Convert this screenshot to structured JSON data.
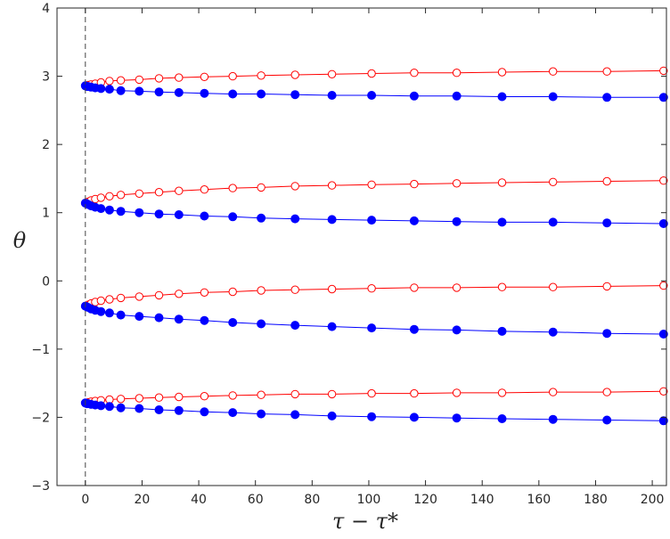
{
  "chart_data": {
    "type": "line",
    "xlabel": "τ − τ*",
    "ylabel": "θ",
    "xlim": [
      -10,
      205
    ],
    "ylim": [
      -3,
      4
    ],
    "x_ticks": [
      0,
      20,
      40,
      60,
      80,
      100,
      120,
      140,
      160,
      180,
      200
    ],
    "y_ticks": [
      -3,
      -2,
      -1,
      0,
      1,
      2,
      3,
      4
    ],
    "grid": false,
    "legend": "none",
    "reference_line": {
      "x": 0,
      "style": "dashed",
      "color": "#444444"
    },
    "x": [
      0,
      0.5,
      1,
      2,
      3.5,
      5.5,
      8.5,
      12.5,
      19,
      26,
      33,
      42,
      52,
      62,
      74,
      87,
      101,
      116,
      131,
      147,
      165,
      184,
      204
    ],
    "series": [
      {
        "color": "#ff0000",
        "marker": "open-circle",
        "values": [
          2.86,
          2.86,
          2.87,
          2.88,
          2.89,
          2.91,
          2.93,
          2.94,
          2.95,
          2.97,
          2.98,
          2.99,
          3.0,
          3.01,
          3.02,
          3.03,
          3.04,
          3.05,
          3.05,
          3.06,
          3.07,
          3.07,
          3.08
        ]
      },
      {
        "color": "#0000ff",
        "marker": "filled-circle",
        "values": [
          2.86,
          2.85,
          2.85,
          2.84,
          2.83,
          2.82,
          2.81,
          2.79,
          2.78,
          2.77,
          2.76,
          2.75,
          2.74,
          2.74,
          2.73,
          2.72,
          2.72,
          2.71,
          2.71,
          2.7,
          2.7,
          2.69,
          2.69
        ]
      },
      {
        "color": "#ff0000",
        "marker": "open-circle",
        "values": [
          1.14,
          1.15,
          1.16,
          1.18,
          1.2,
          1.22,
          1.24,
          1.26,
          1.28,
          1.3,
          1.32,
          1.34,
          1.36,
          1.37,
          1.39,
          1.4,
          1.41,
          1.42,
          1.43,
          1.44,
          1.45,
          1.46,
          1.47
        ]
      },
      {
        "color": "#0000ff",
        "marker": "filled-circle",
        "values": [
          1.14,
          1.13,
          1.12,
          1.1,
          1.08,
          1.06,
          1.04,
          1.02,
          1.0,
          0.98,
          0.97,
          0.95,
          0.94,
          0.92,
          0.91,
          0.9,
          0.89,
          0.88,
          0.87,
          0.86,
          0.86,
          0.85,
          0.84
        ]
      },
      {
        "color": "#ff0000",
        "marker": "open-circle",
        "values": [
          -0.37,
          -0.36,
          -0.35,
          -0.33,
          -0.31,
          -0.29,
          -0.27,
          -0.25,
          -0.23,
          -0.21,
          -0.19,
          -0.17,
          -0.16,
          -0.14,
          -0.13,
          -0.12,
          -0.11,
          -0.1,
          -0.1,
          -0.09,
          -0.09,
          -0.08,
          -0.07
        ]
      },
      {
        "color": "#0000ff",
        "marker": "filled-circle",
        "values": [
          -0.37,
          -0.38,
          -0.39,
          -0.41,
          -0.43,
          -0.45,
          -0.47,
          -0.5,
          -0.52,
          -0.54,
          -0.56,
          -0.58,
          -0.61,
          -0.63,
          -0.65,
          -0.67,
          -0.69,
          -0.71,
          -0.72,
          -0.74,
          -0.75,
          -0.77,
          -0.78
        ]
      },
      {
        "color": "#ff0000",
        "marker": "open-circle",
        "values": [
          -1.79,
          -1.79,
          -1.78,
          -1.77,
          -1.76,
          -1.75,
          -1.74,
          -1.73,
          -1.72,
          -1.71,
          -1.7,
          -1.69,
          -1.68,
          -1.67,
          -1.66,
          -1.66,
          -1.65,
          -1.65,
          -1.64,
          -1.64,
          -1.63,
          -1.63,
          -1.62
        ]
      },
      {
        "color": "#0000ff",
        "marker": "filled-circle",
        "values": [
          -1.79,
          -1.8,
          -1.8,
          -1.81,
          -1.82,
          -1.83,
          -1.84,
          -1.86,
          -1.87,
          -1.89,
          -1.9,
          -1.92,
          -1.93,
          -1.95,
          -1.96,
          -1.98,
          -1.99,
          -2.0,
          -2.01,
          -2.02,
          -2.03,
          -2.04,
          -2.05
        ]
      }
    ]
  }
}
